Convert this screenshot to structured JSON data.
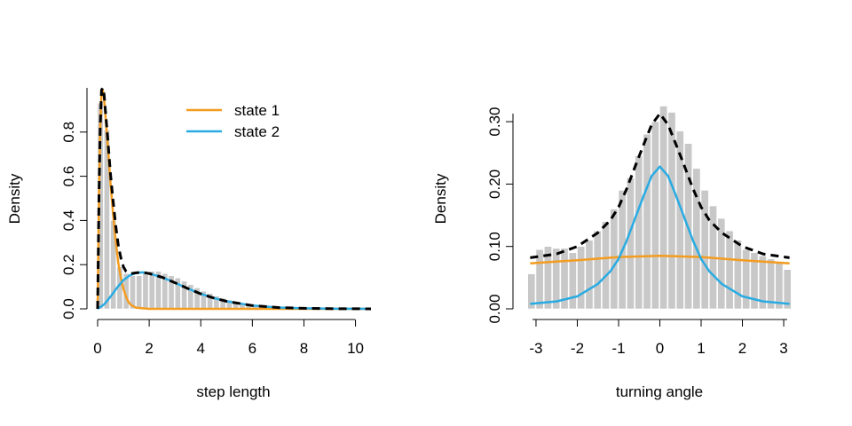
{
  "chart_data": [
    {
      "type": "bar",
      "xlabel": "step length",
      "ylabel": "Density",
      "xlim": [
        0,
        10.6
      ],
      "ylim": [
        0,
        1.0
      ],
      "x_ticks": [
        "0",
        "2",
        "4",
        "6",
        "8",
        "10"
      ],
      "y_ticks": [
        "0.0",
        "0.2",
        "0.4",
        "0.6",
        "0.8"
      ],
      "histogram": {
        "bin_width": 0.25,
        "bin_start": 0,
        "values": [
          0.93,
          0.81,
          0.4,
          0.19,
          0.16,
          0.15,
          0.15,
          0.16,
          0.17,
          0.17,
          0.16,
          0.15,
          0.14,
          0.125,
          0.11,
          0.095,
          0.08,
          0.07,
          0.058,
          0.048,
          0.04,
          0.032,
          0.026,
          0.02,
          0.016,
          0.012,
          0.009,
          0.007,
          0.005,
          0.004,
          0.003,
          0.002,
          0.0015,
          0.001,
          0.0007,
          0.0005,
          0.0003,
          0.0002,
          0.0001,
          0.0001,
          0.0001,
          0.0001
        ]
      },
      "legend": {
        "position": "top-center",
        "entries": [
          "state 1",
          "state 2"
        ]
      },
      "series": [
        {
          "name": "state 1",
          "color": "#F39C1F",
          "style": "solid",
          "x": [
            0,
            0.05,
            0.1,
            0.15,
            0.2,
            0.25,
            0.3,
            0.4,
            0.5,
            0.6,
            0.7,
            0.8,
            0.9,
            1.0,
            1.1,
            1.2,
            1.3,
            1.5,
            2.0,
            3,
            10.6
          ],
          "y": [
            0,
            0.5,
            0.82,
            0.98,
            0.99,
            0.95,
            0.88,
            0.73,
            0.57,
            0.43,
            0.31,
            0.21,
            0.14,
            0.09,
            0.055,
            0.03,
            0.017,
            0.005,
            0,
            0,
            0
          ]
        },
        {
          "name": "state 2",
          "color": "#29ABE2",
          "style": "solid",
          "x": [
            0,
            0.25,
            0.5,
            0.75,
            1,
            1.25,
            1.5,
            1.75,
            2,
            2.5,
            3,
            3.5,
            4,
            4.5,
            5,
            6,
            7,
            8,
            9,
            10,
            10.6
          ],
          "y": [
            0,
            0.02,
            0.055,
            0.095,
            0.13,
            0.152,
            0.163,
            0.165,
            0.16,
            0.143,
            0.118,
            0.092,
            0.068,
            0.049,
            0.034,
            0.015,
            0.006,
            0.0025,
            0.001,
            0.0004,
            0.0002
          ]
        },
        {
          "name": "",
          "color": "#000000",
          "style": "dashed",
          "x": [
            0,
            0.05,
            0.1,
            0.15,
            0.2,
            0.25,
            0.3,
            0.4,
            0.5,
            0.6,
            0.7,
            0.8,
            0.9,
            1.0,
            1.1,
            1.2,
            1.3,
            1.5,
            1.75,
            2,
            2.5,
            3,
            3.5,
            4,
            4.5,
            5,
            6,
            7,
            8,
            9,
            10,
            10.6
          ],
          "y": [
            0,
            0.5,
            0.82,
            0.99,
            1.0,
            0.97,
            0.9,
            0.76,
            0.61,
            0.49,
            0.38,
            0.29,
            0.23,
            0.19,
            0.17,
            0.163,
            0.16,
            0.163,
            0.165,
            0.16,
            0.143,
            0.118,
            0.092,
            0.068,
            0.049,
            0.034,
            0.015,
            0.006,
            0.0025,
            0.001,
            0.0004,
            0.0002
          ]
        }
      ]
    },
    {
      "type": "bar",
      "xlabel": "turning angle",
      "ylabel": "Density",
      "xlim": [
        -3.3,
        3.3
      ],
      "ylim": [
        0,
        0.33
      ],
      "x_ticks": [
        "-3",
        "-2",
        "-1",
        "0",
        "1",
        "2",
        "3"
      ],
      "y_ticks": [
        "0.00",
        "0.10",
        "0.20",
        "0.30"
      ],
      "histogram": {
        "bin_width": 0.2,
        "bin_start": -3.2,
        "values": [
          0.056,
          0.095,
          0.1,
          0.097,
          0.097,
          0.09,
          0.1,
          0.11,
          0.125,
          0.14,
          0.16,
          0.19,
          0.21,
          0.245,
          0.28,
          0.3,
          0.325,
          0.315,
          0.285,
          0.265,
          0.225,
          0.19,
          0.165,
          0.145,
          0.125,
          0.11,
          0.095,
          0.09,
          0.085,
          0.08,
          0.075,
          0.063
        ]
      },
      "series": [
        {
          "name": "",
          "color": "#F39C1F",
          "style": "solid",
          "x": [
            -3.14,
            -2,
            -1,
            0,
            1,
            2,
            3.14
          ],
          "y": [
            0.073,
            0.078,
            0.083,
            0.085,
            0.083,
            0.078,
            0.073
          ]
        },
        {
          "name": "",
          "color": "#29ABE2",
          "style": "solid",
          "x": [
            -3.14,
            -2.5,
            -2,
            -1.5,
            -1.2,
            -1,
            -0.8,
            -0.6,
            -0.4,
            -0.2,
            0,
            0.2,
            0.4,
            0.6,
            0.8,
            1,
            1.2,
            1.5,
            2,
            2.5,
            3.14
          ],
          "y": [
            0.008,
            0.012,
            0.02,
            0.04,
            0.06,
            0.08,
            0.11,
            0.145,
            0.18,
            0.213,
            0.228,
            0.213,
            0.18,
            0.145,
            0.11,
            0.08,
            0.06,
            0.04,
            0.02,
            0.012,
            0.008
          ]
        },
        {
          "name": "",
          "color": "#000000",
          "style": "dashed",
          "x": [
            -3.14,
            -2.5,
            -2,
            -1.5,
            -1.2,
            -1,
            -0.8,
            -0.6,
            -0.4,
            -0.2,
            0,
            0.2,
            0.4,
            0.6,
            0.8,
            1,
            1.2,
            1.5,
            2,
            2.5,
            3.14
          ],
          "y": [
            0.082,
            0.088,
            0.1,
            0.122,
            0.142,
            0.163,
            0.193,
            0.228,
            0.262,
            0.295,
            0.313,
            0.295,
            0.262,
            0.228,
            0.193,
            0.163,
            0.142,
            0.122,
            0.1,
            0.088,
            0.082
          ]
        }
      ]
    }
  ]
}
